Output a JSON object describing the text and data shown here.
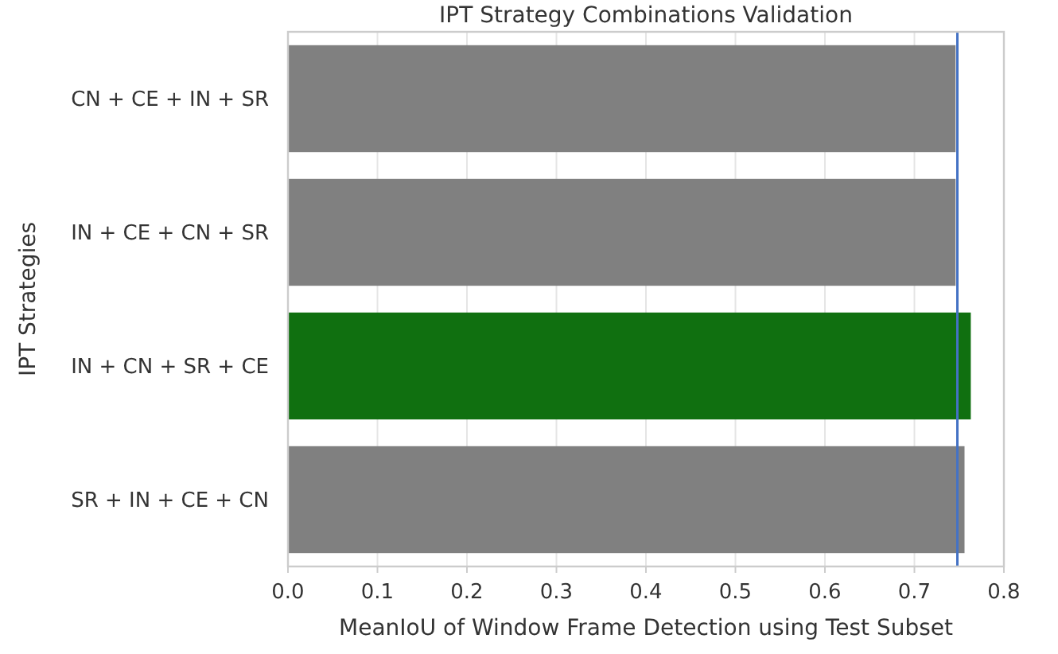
{
  "chart_data": {
    "type": "bar",
    "orientation": "horizontal",
    "title": "IPT Strategy Combinations Validation",
    "xlabel": "MeanIoU of Window Frame Detection using Test Subset",
    "ylabel": "IPT Strategies",
    "categories": [
      "CN + CE + IN + SR",
      "IN + CE + CN + SR",
      "IN + CN + SR + CE",
      "SR + IN + CE + CN"
    ],
    "values": [
      0.746,
      0.746,
      0.763,
      0.756
    ],
    "colors": [
      "#808080",
      "#808080",
      "#107010",
      "#808080"
    ],
    "xlim": [
      0,
      0.8
    ],
    "xticks": [
      {
        "value": 0,
        "label": "0.0"
      },
      0.1,
      0.2,
      0.3,
      0.4,
      0.5,
      0.6,
      0.7,
      0.8
    ],
    "ref_lines": [
      {
        "axis": "x",
        "value": 0.748,
        "color": "#4472c4"
      }
    ],
    "grid": "x"
  }
}
